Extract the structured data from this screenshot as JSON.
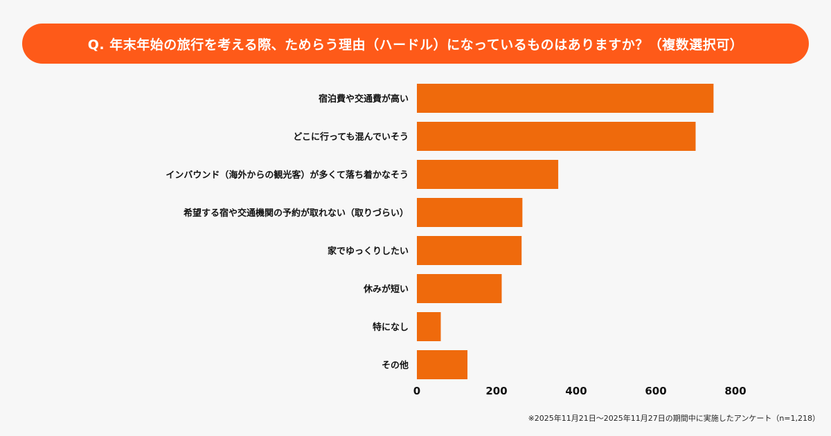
{
  "title": "Q. 年末年始の旅行を考える際、ためらう理由（ハードル）になっているものはありますか？（複数選択可）",
  "footnote": "※2025年11月21日〜2025年11月27日の期間中に実施したアンケート（n=1,218）",
  "colors": {
    "banner": "#fe5a19",
    "bar": "#ef6a0c",
    "background": "#f7f7f7"
  },
  "chart_data": {
    "type": "bar",
    "orientation": "horizontal",
    "title": "Q. 年末年始の旅行を考える際、ためらう理由（ハードル）になっているものはありますか？（複数選択可）",
    "categories": [
      "宿泊費や交通費が高い",
      "どこに行っても混んでいそう",
      "インバウンド（海外からの観光客）が多くて落ち着かなそう",
      "希望する宿や交通機関の予約が取れない（取りづらい）",
      "家でゆっくりしたい",
      "休みが短い",
      "特になし",
      "その他"
    ],
    "values": [
      745,
      700,
      355,
      265,
      263,
      213,
      60,
      127
    ],
    "xlim": [
      0,
      800
    ],
    "xticks": [
      "0",
      "200",
      "400",
      "600",
      "800"
    ],
    "grid": false,
    "legend": "none"
  }
}
